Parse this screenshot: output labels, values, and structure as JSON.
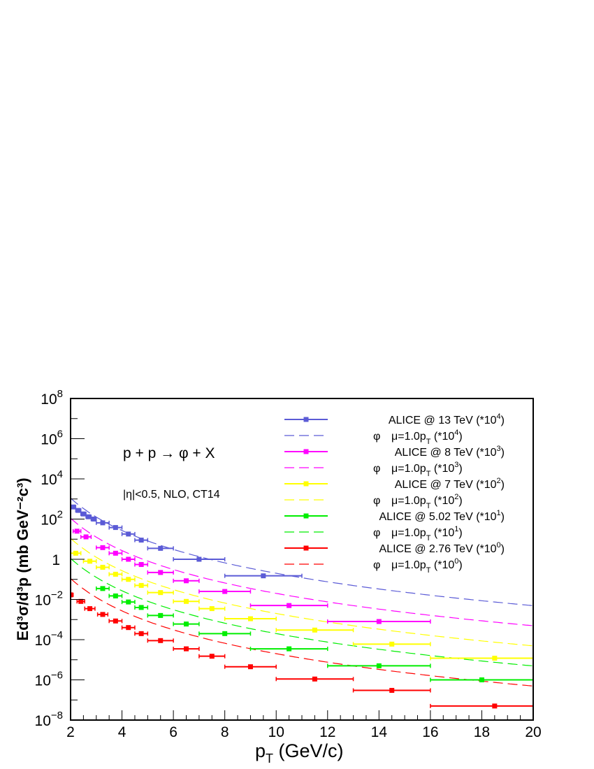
{
  "chart_data": {
    "type": "scatter",
    "xlabel": {
      "main": "p",
      "sub": "T",
      "rest": " (GeV/c)"
    },
    "ylabel": "Ed³σ/d³p (mb GeV⁻²c³)",
    "xlim": [
      2,
      20
    ],
    "ylim": [
      1e-08,
      100000000.0
    ],
    "y_scale": "log",
    "x_ticks": [
      "2",
      "4",
      "6",
      "8",
      "10",
      "12",
      "14",
      "16",
      "18",
      "20"
    ],
    "y_ticks": [
      {
        "base": "10",
        "exp": "−8"
      },
      {
        "base": "10",
        "exp": "−6"
      },
      {
        "base": "10",
        "exp": "−4"
      },
      {
        "base": "10",
        "exp": "−2"
      },
      {
        "base": "1",
        "exp": ""
      },
      {
        "base": "10",
        "exp": "2"
      },
      {
        "base": "10",
        "exp": "4"
      },
      {
        "base": "10",
        "exp": "6"
      },
      {
        "base": "10",
        "exp": "8"
      }
    ],
    "annotations": {
      "process": "p + p → φ + X",
      "cuts": "|η|<0.5, NLO, CT14"
    },
    "legend_position": "top-right",
    "series": [
      {
        "name": "ALICE @ 13 TeV (*10⁴)",
        "legend": {
          "text": "ALICE @ 13 TeV (*10",
          "sup": "4",
          "end": ")"
        },
        "theory_legend": {
          "phi": "φ",
          "mu": "μ=1.0p",
          "sub": "T",
          "scale": " (*10",
          "sup": "4",
          "end": ")"
        },
        "color": "#5b5bd6",
        "points": [
          {
            "x": 2.1,
            "y": 400,
            "xerr": 0.1
          },
          {
            "x": 2.3,
            "y": 270,
            "xerr": 0.1
          },
          {
            "x": 2.5,
            "y": 180,
            "xerr": 0.1
          },
          {
            "x": 2.7,
            "y": 130,
            "xerr": 0.1
          },
          {
            "x": 2.9,
            "y": 100,
            "xerr": 0.1
          },
          {
            "x": 3.25,
            "y": 65,
            "xerr": 0.25
          },
          {
            "x": 3.75,
            "y": 38,
            "xerr": 0.25
          },
          {
            "x": 4.25,
            "y": 18,
            "xerr": 0.25
          },
          {
            "x": 4.75,
            "y": 9,
            "xerr": 0.25
          },
          {
            "x": 5.5,
            "y": 3.5,
            "xerr": 0.5
          },
          {
            "x": 7.0,
            "y": 1.0,
            "xerr": 1.0
          },
          {
            "x": 9.5,
            "y": 0.15,
            "xerr": 1.5
          }
        ],
        "theory": {
          "A": 45000,
          "n": 3.2,
          "B": 4.3
        }
      },
      {
        "name": "ALICE @ 8 TeV (*10³)",
        "legend": {
          "text": "ALICE @ 8 TeV (*10",
          "sup": "3",
          "end": ")"
        },
        "theory_legend": {
          "phi": "φ",
          "mu": "μ=1.0p",
          "sub": "T",
          "scale": " (*10",
          "sup": "3",
          "end": ")"
        },
        "color": "#ff00ff",
        "points": [
          {
            "x": 2.25,
            "y": 25,
            "xerr": 0.15
          },
          {
            "x": 2.6,
            "y": 13,
            "xerr": 0.2
          },
          {
            "x": 3.25,
            "y": 3.8,
            "xerr": 0.25
          },
          {
            "x": 3.75,
            "y": 2.0,
            "xerr": 0.25
          },
          {
            "x": 4.25,
            "y": 1.0,
            "xerr": 0.25
          },
          {
            "x": 4.75,
            "y": 0.55,
            "xerr": 0.25
          },
          {
            "x": 5.5,
            "y": 0.22,
            "xerr": 0.5
          },
          {
            "x": 6.5,
            "y": 0.085,
            "xerr": 0.5
          },
          {
            "x": 8.0,
            "y": 0.025,
            "xerr": 1.0
          },
          {
            "x": 10.5,
            "y": 0.005,
            "xerr": 1.5
          },
          {
            "x": 14.0,
            "y": 0.0008,
            "xerr": 2.0
          }
        ],
        "theory": {
          "A": 4500,
          "n": 3.2,
          "B": 4.3
        }
      },
      {
        "name": "ALICE @ 7 TeV (*10²)",
        "legend": {
          "text": "ALICE @ 7 TeV (*10",
          "sup": "2",
          "end": ")"
        },
        "theory_legend": {
          "phi": "φ",
          "mu": "μ=1.0p",
          "sub": "T",
          "scale": " (*10",
          "sup": "2",
          "end": ")"
        },
        "color": "#ffff00",
        "points": [
          {
            "x": 2.2,
            "y": 2.0,
            "xerr": 0.2
          },
          {
            "x": 2.75,
            "y": 0.8,
            "xerr": 0.25
          },
          {
            "x": 3.25,
            "y": 0.4,
            "xerr": 0.25
          },
          {
            "x": 3.75,
            "y": 0.18,
            "xerr": 0.25
          },
          {
            "x": 4.25,
            "y": 0.1,
            "xerr": 0.25
          },
          {
            "x": 4.75,
            "y": 0.05,
            "xerr": 0.25
          },
          {
            "x": 5.5,
            "y": 0.022,
            "xerr": 0.5
          },
          {
            "x": 6.5,
            "y": 0.008,
            "xerr": 0.5
          },
          {
            "x": 7.5,
            "y": 0.0035,
            "xerr": 0.5
          },
          {
            "x": 9.0,
            "y": 0.0011,
            "xerr": 1.0
          },
          {
            "x": 11.5,
            "y": 0.0003,
            "xerr": 1.5
          },
          {
            "x": 14.5,
            "y": 6e-05,
            "xerr": 1.5
          },
          {
            "x": 18.5,
            "y": 1.2e-05,
            "xerr": 2.5
          }
        ],
        "theory": {
          "A": 450,
          "n": 3.2,
          "B": 4.3
        }
      },
      {
        "name": "ALICE @ 5.02 TeV (*10¹)",
        "legend": {
          "text": "ALICE @ 5.02 TeV (*10",
          "sup": "1",
          "end": ")"
        },
        "theory_legend": {
          "phi": "φ",
          "mu": "μ=1.0p",
          "sub": "T",
          "scale": " (*10",
          "sup": "1",
          "end": ")"
        },
        "color": "#00ee00",
        "points": [
          {
            "x": 3.25,
            "y": 0.035,
            "xerr": 0.25
          },
          {
            "x": 3.75,
            "y": 0.015,
            "xerr": 0.25
          },
          {
            "x": 4.25,
            "y": 0.0075,
            "xerr": 0.25
          },
          {
            "x": 4.75,
            "y": 0.004,
            "xerr": 0.25
          },
          {
            "x": 5.5,
            "y": 0.0016,
            "xerr": 0.5
          },
          {
            "x": 6.5,
            "y": 0.0006,
            "xerr": 0.5
          },
          {
            "x": 8.0,
            "y": 0.0002,
            "xerr": 1.0
          },
          {
            "x": 10.5,
            "y": 3.5e-05,
            "xerr": 1.5
          },
          {
            "x": 14.0,
            "y": 5e-06,
            "xerr": 2.0
          },
          {
            "x": 18.0,
            "y": 1e-06,
            "xerr": 2.0
          }
        ],
        "theory": {
          "A": 45,
          "n": 3.2,
          "B": 4.3
        }
      },
      {
        "name": "ALICE @ 2.76 TeV (*10⁰)",
        "legend": {
          "text": "ALICE @ 2.76 TeV (*10",
          "sup": "0",
          "end": ")"
        },
        "theory_legend": {
          "phi": "φ",
          "mu": "μ=1.0p",
          "sub": "T",
          "scale": " (*10",
          "sup": "0",
          "end": ")"
        },
        "color": "#ff0000",
        "points": [
          {
            "x": 2.0,
            "y": 0.017,
            "xerr": 0.1
          },
          {
            "x": 2.4,
            "y": 0.008,
            "xerr": 0.15
          },
          {
            "x": 2.75,
            "y": 0.0035,
            "xerr": 0.2
          },
          {
            "x": 3.25,
            "y": 0.0018,
            "xerr": 0.2
          },
          {
            "x": 3.75,
            "y": 0.00085,
            "xerr": 0.25
          },
          {
            "x": 4.25,
            "y": 0.0004,
            "xerr": 0.25
          },
          {
            "x": 4.75,
            "y": 0.0002,
            "xerr": 0.25
          },
          {
            "x": 5.5,
            "y": 9e-05,
            "xerr": 0.5
          },
          {
            "x": 6.5,
            "y": 3.5e-05,
            "xerr": 0.5
          },
          {
            "x": 7.5,
            "y": 1.5e-05,
            "xerr": 0.5
          },
          {
            "x": 9.0,
            "y": 4.5e-06,
            "xerr": 1.0
          },
          {
            "x": 11.5,
            "y": 1.1e-06,
            "xerr": 1.5
          },
          {
            "x": 14.5,
            "y": 3e-07,
            "xerr": 1.5
          },
          {
            "x": 18.5,
            "y": 5e-08,
            "xerr": 2.5
          }
        ],
        "theory": {
          "A": 4.5,
          "n": 3.2,
          "B": 4.3
        }
      }
    ]
  }
}
